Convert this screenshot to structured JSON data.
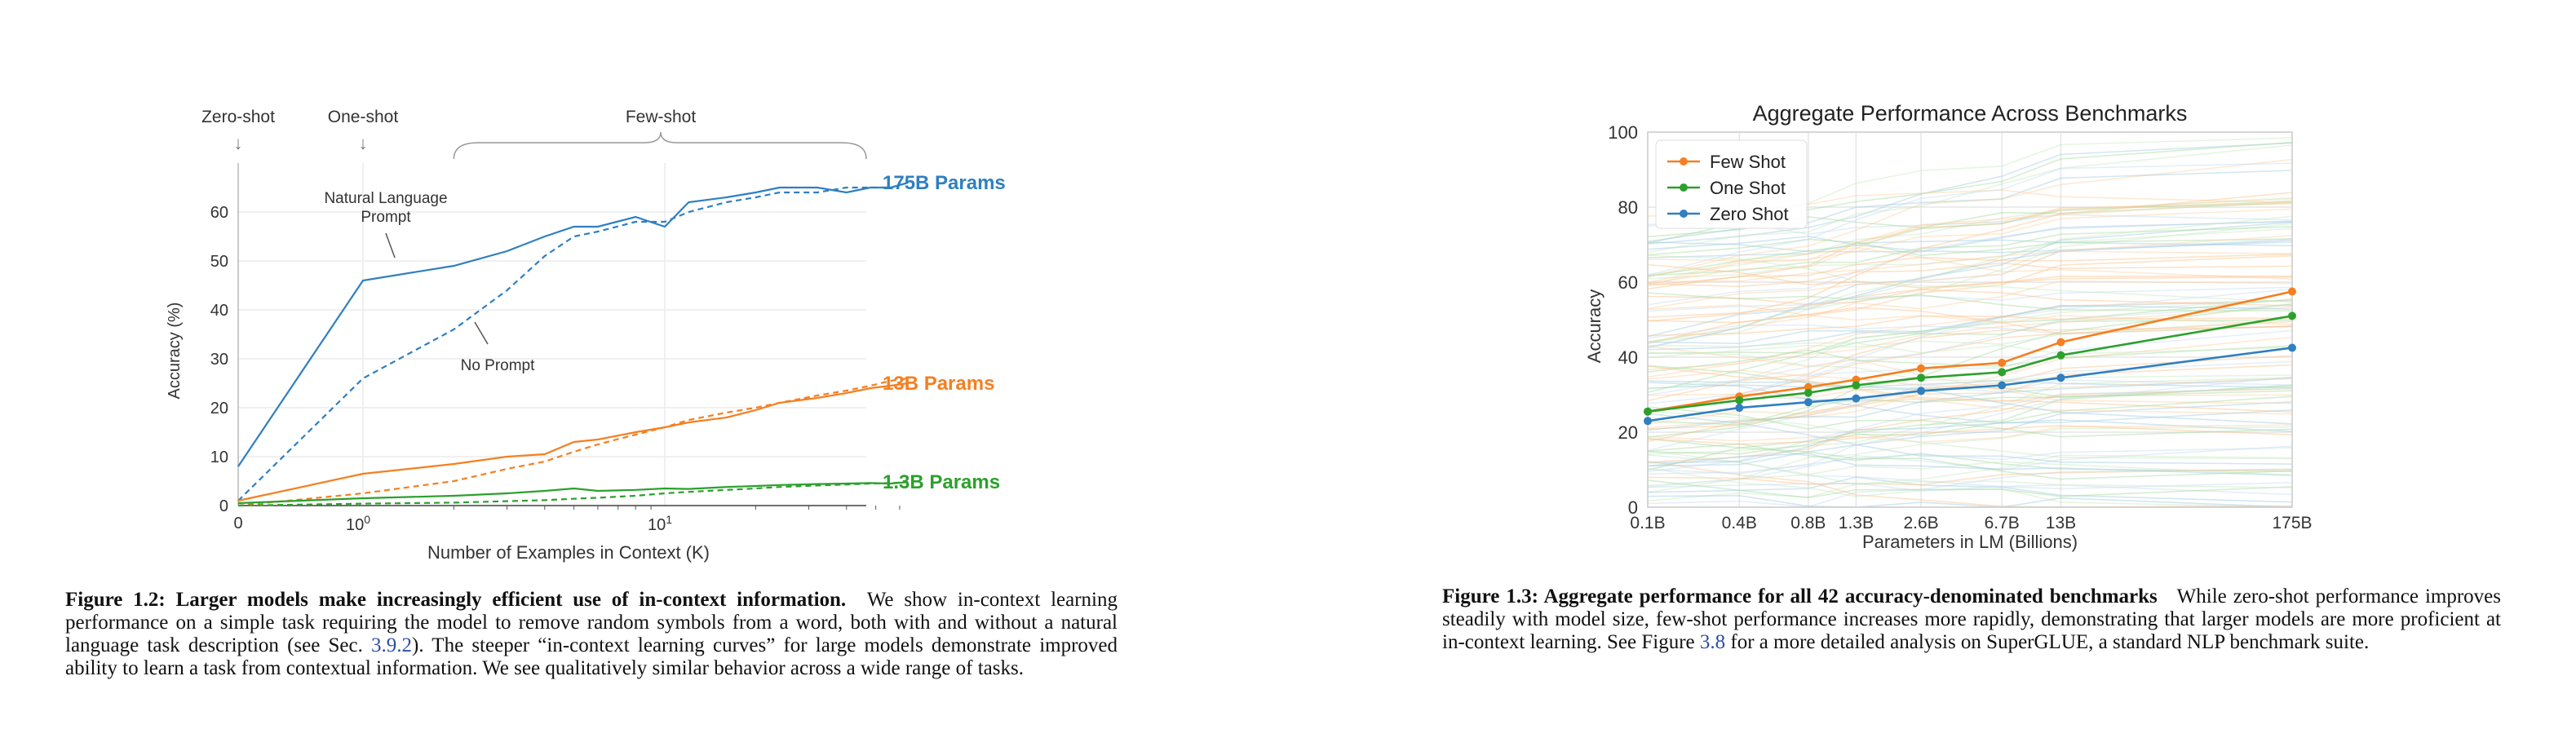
{
  "left_figure": {
    "labels": {
      "zero_shot": "Zero-shot",
      "one_shot": "One-shot",
      "few_shot": "Few-shot",
      "nl_prompt": [
        "Natural Language",
        "Prompt"
      ],
      "no_prompt": "No Prompt"
    },
    "caption": {
      "title": "Figure 1.2: Larger models make increasingly efficient use of in-context information.",
      "text_1": "We show in-context learning performance on a simple task requiring the model to remove random symbols from a word, both with and without a natural language task description (see Sec.",
      "ref": "3.9.2",
      "text_2": "). The steeper “in-context learning curves” for large models demonstrate improved ability to learn a task from contextual information. We see qualitatively similar behavior across a wide range of tasks."
    }
  },
  "right_figure": {
    "caption": {
      "title": "Figure 1.3: Aggregate performance for all 42 accuracy-denominated benchmarks",
      "text_1": "While zero-shot performance improves steadily with model size, few-shot performance increases more rapidly, demonstrating that larger models are more proficient at in-context learning. See Figure",
      "ref": "3.8",
      "text_2": "for a more detailed analysis on SuperGLUE, a standard NLP benchmark suite."
    }
  },
  "chart_data": [
    {
      "type": "line",
      "title": "",
      "xlabel": "Number of Examples in Context  (K)",
      "ylabel": "Accuracy (%)",
      "xscale": "symlog",
      "xlim": [
        0,
        64
      ],
      "ylim": [
        0,
        70
      ],
      "x_ticks": [
        "0",
        "10^0",
        "10^1"
      ],
      "y_ticks": [
        0,
        10,
        20,
        30,
        40,
        50,
        60
      ],
      "grid": true,
      "legend": "none (series labeled at right end)",
      "series": [
        {
          "name": "175B Params",
          "color": "#2f7fc1",
          "style": "solid",
          "x": [
            0,
            1,
            2,
            3,
            4,
            5,
            6,
            8,
            10,
            12,
            16,
            20,
            24,
            32,
            40,
            48,
            56,
            64
          ],
          "y": [
            8,
            46,
            49,
            52,
            55,
            57,
            57,
            59,
            57,
            62,
            63,
            64,
            65,
            65,
            64,
            65,
            65,
            66
          ]
        },
        {
          "name": "175B Params (No Prompt)",
          "color": "#2f7fc1",
          "style": "dashed",
          "x": [
            0,
            1,
            2,
            3,
            4,
            5,
            6,
            8,
            10,
            12,
            16,
            20,
            24,
            32,
            40,
            48,
            56,
            64
          ],
          "y": [
            1,
            26,
            36,
            44,
            51,
            55,
            56,
            58,
            58,
            60,
            62,
            63,
            64,
            64,
            65,
            65,
            65,
            66
          ]
        },
        {
          "name": "13B Params",
          "color": "#f57f20",
          "style": "solid",
          "x": [
            0,
            1,
            2,
            3,
            4,
            5,
            6,
            8,
            10,
            12,
            16,
            20,
            24,
            32,
            40,
            48,
            56,
            64
          ],
          "y": [
            1,
            6.5,
            8.5,
            10,
            10.5,
            13,
            13.5,
            15,
            16,
            17,
            18,
            19.5,
            21,
            22,
            23,
            24,
            24.5,
            25
          ]
        },
        {
          "name": "13B Params (No Prompt)",
          "color": "#f57f20",
          "style": "dashed",
          "x": [
            0,
            1,
            2,
            3,
            4,
            5,
            6,
            8,
            10,
            12,
            16,
            20,
            24,
            32,
            40,
            48,
            56,
            64
          ],
          "y": [
            0,
            2.5,
            5,
            7.5,
            9,
            11,
            12.5,
            14.5,
            16,
            17.5,
            19,
            20,
            21,
            22.5,
            23.5,
            24.5,
            25.5,
            26
          ]
        },
        {
          "name": "1.3B Params",
          "color": "#2ca02c",
          "style": "solid",
          "x": [
            0,
            1,
            2,
            3,
            4,
            5,
            6,
            8,
            10,
            12,
            16,
            20,
            24,
            32,
            40,
            48,
            56,
            64
          ],
          "y": [
            0.5,
            1.5,
            2,
            2.5,
            3,
            3.5,
            3,
            3.2,
            3.5,
            3.4,
            3.8,
            4,
            4.2,
            4.4,
            4.5,
            4.6,
            4.5,
            4.8
          ]
        },
        {
          "name": "1.3B Params (No Prompt)",
          "color": "#2ca02c",
          "style": "dashed",
          "x": [
            0,
            1,
            2,
            3,
            4,
            5,
            6,
            8,
            10,
            12,
            16,
            20,
            24,
            32,
            40,
            48,
            56,
            64
          ],
          "y": [
            0,
            0.4,
            0.6,
            0.9,
            1.1,
            1.4,
            1.6,
            2,
            2.5,
            2.8,
            3.2,
            3.5,
            3.8,
            4.1,
            4.3,
            4.5,
            4.6,
            4.8
          ]
        }
      ]
    },
    {
      "type": "line",
      "title": "Aggregate Performance Across Benchmarks",
      "xlabel": "Parameters in LM (Billions)",
      "ylabel": "Accuracy",
      "xscale": "log",
      "categories": [
        "0.1B",
        "0.4B",
        "0.8B",
        "1.3B",
        "2.6B",
        "6.7B",
        "13B",
        "175B"
      ],
      "x": [
        0.125,
        0.35,
        0.76,
        1.3,
        2.7,
        6.7,
        13,
        175
      ],
      "ylim": [
        0,
        100
      ],
      "y_ticks": [
        0,
        20,
        40,
        60,
        80,
        100
      ],
      "grid": true,
      "legend": "top-left",
      "series": [
        {
          "name": "Few Shot",
          "color": "#f57f20",
          "y": [
            25.5,
            29.5,
            32,
            34,
            37,
            38.5,
            44,
            57.5
          ]
        },
        {
          "name": "One Shot",
          "color": "#2ca02c",
          "y": [
            25.5,
            28.5,
            30.5,
            32.5,
            34.5,
            36,
            40.5,
            51
          ]
        },
        {
          "name": "Zero Shot",
          "color": "#2f7fc1",
          "y": [
            23,
            26.5,
            28,
            29,
            31,
            32.5,
            34.5,
            42.5
          ]
        }
      ]
    }
  ]
}
